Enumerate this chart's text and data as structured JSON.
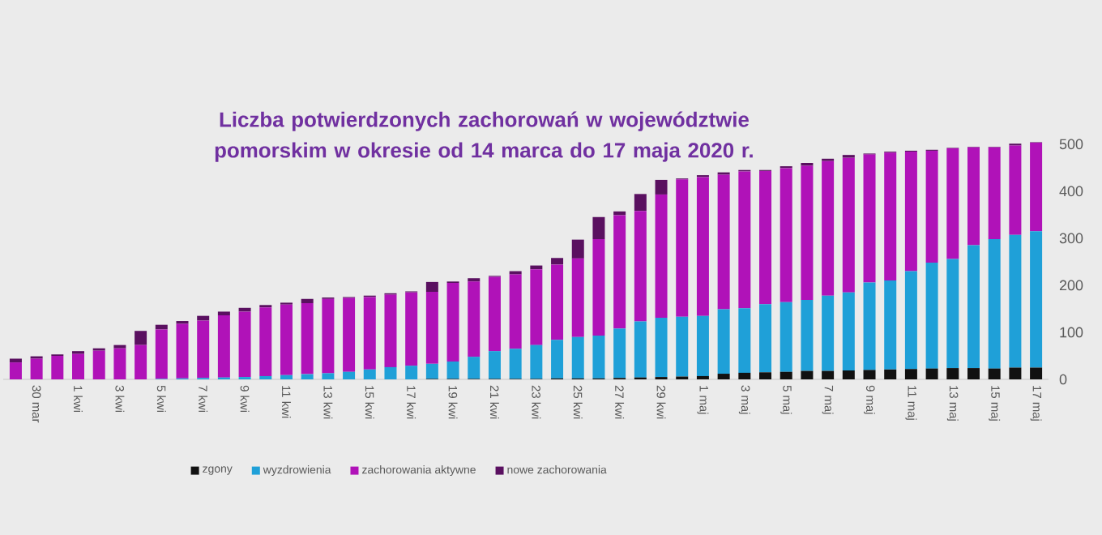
{
  "chart_data": {
    "type": "bar",
    "stacked": true,
    "title": "Liczba potwierdzonych zachorowań w województwie pomorskim w okresie od 14 marca do 17 maja 2020 r.",
    "categories": [
      null,
      "30 mar",
      null,
      "1 kwi",
      null,
      "3 kwi",
      null,
      "5 kwi",
      null,
      "7 kwi",
      null,
      "9 kwi",
      null,
      "11 kwi",
      null,
      "13 kwi",
      null,
      "15 kwi",
      null,
      "17 kwi",
      null,
      "19 kwi",
      null,
      "21 kwi",
      null,
      "23 kwi",
      null,
      "25 kwi",
      null,
      "27 kwi",
      null,
      "29 kwi",
      null,
      "1 maj",
      null,
      "3 maj",
      null,
      "5 maj",
      null,
      "7 maj",
      null,
      "9 maj",
      null,
      "11 maj",
      null,
      "13 maj",
      null,
      "15 maj",
      null,
      "17 maj"
    ],
    "series": [
      {
        "name": "zgony",
        "color": "#111111",
        "values": [
          0,
          0,
          0,
          0,
          0,
          0,
          0,
          0,
          0,
          0,
          0,
          0,
          0,
          0,
          0,
          0,
          0,
          0,
          0,
          0,
          1,
          1,
          1,
          1,
          1,
          1,
          2,
          2,
          2,
          3,
          4,
          5,
          6,
          7,
          12,
          14,
          15,
          16,
          18,
          18,
          19,
          20,
          21,
          22,
          23,
          24,
          24,
          23,
          25,
          25
        ]
      },
      {
        "name": "wyzdrowienia",
        "color": "#1fa0d8",
        "values": [
          0,
          0,
          0,
          0,
          0,
          0,
          0,
          1,
          2,
          3,
          4,
          5,
          7,
          9,
          11,
          13,
          16,
          21,
          26,
          29,
          32,
          37,
          47,
          59,
          64,
          72,
          82,
          88,
          91,
          105,
          119,
          126,
          127,
          128,
          137,
          137,
          145,
          148,
          151,
          160,
          166,
          186,
          189,
          208,
          225,
          232,
          261,
          275,
          282,
          290
        ]
      },
      {
        "name": "zachorowania aktywne",
        "color": "#b012b8",
        "values": [
          36,
          44,
          50,
          54,
          61,
          66,
          73,
          105,
          116,
          122,
          132,
          139,
          146,
          150,
          151,
          158,
          157,
          154,
          154,
          156,
          153,
          167,
          160,
          158,
          158,
          161,
          160,
          167,
          205,
          241,
          235,
          262,
          292,
          295,
          286,
          291,
          283,
          285,
          285,
          286,
          286,
          272,
          272,
          254,
          238,
          235,
          208,
          195,
          190,
          188
        ]
      },
      {
        "name": "nowe zachorowania",
        "color": "#5a1060",
        "values": [
          8,
          5,
          3,
          6,
          5,
          7,
          30,
          10,
          6,
          10,
          8,
          8,
          5,
          4,
          9,
          3,
          2,
          3,
          3,
          2,
          21,
          3,
          7,
          2,
          7,
          8,
          14,
          40,
          47,
          8,
          36,
          31,
          2,
          4,
          5,
          3,
          2,
          4,
          6,
          5,
          6,
          2,
          2,
          2,
          2,
          1,
          1,
          1,
          4,
          1
        ]
      }
    ],
    "ylim": [
      0,
      510
    ],
    "yticks": [
      0,
      100,
      200,
      300,
      400,
      500
    ],
    "grid": false,
    "legend": "bottom"
  }
}
